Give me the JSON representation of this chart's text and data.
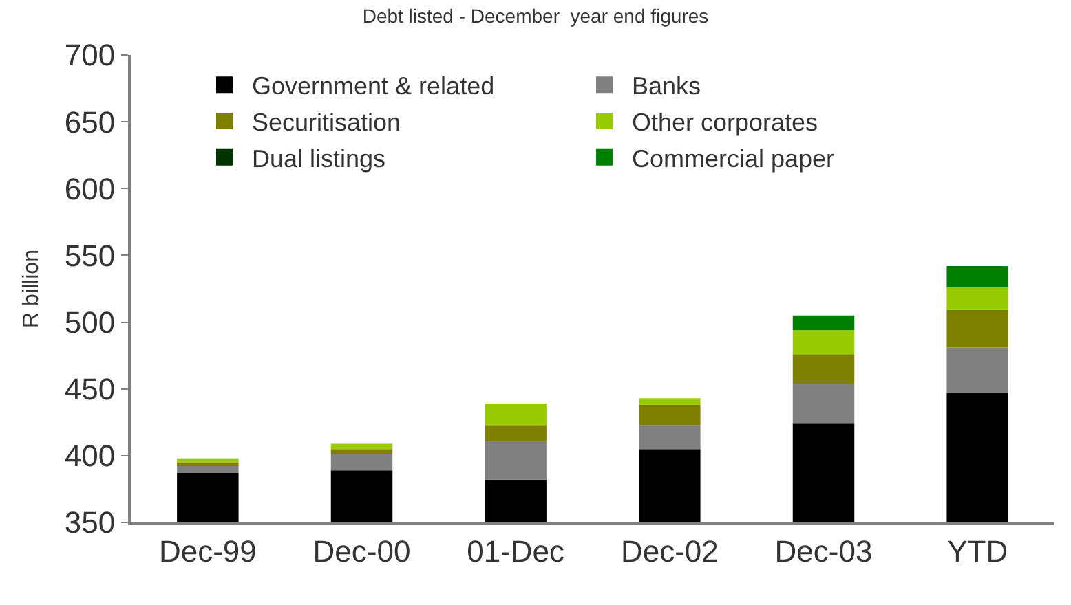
{
  "chart_data": {
    "type": "bar",
    "title": "Debt listed - December  year end figures",
    "ylabel": "R billion",
    "categories": [
      "Dec-99",
      "Dec-00",
      "01-Dec",
      "Dec-02",
      "Dec-03",
      "YTD"
    ],
    "stacked": true,
    "ylim": [
      350,
      700
    ],
    "yticks": [
      350,
      400,
      450,
      500,
      550,
      600,
      650,
      700
    ],
    "grid": false,
    "legend": "top",
    "series": [
      {
        "name": "Government & related",
        "color": "#000000",
        "values": [
          387,
          389,
          382,
          405,
          424,
          447
        ]
      },
      {
        "name": "Banks",
        "color": "#808080",
        "base": [
          387,
          389,
          382,
          405,
          424,
          447
        ],
        "values": [
          6,
          12,
          29,
          18,
          30,
          34
        ]
      },
      {
        "name": "Securitisation",
        "color": "#808000",
        "base": [
          393,
          401,
          411,
          423,
          454,
          481
        ],
        "values": [
          2,
          4,
          12,
          15,
          22,
          28
        ]
      },
      {
        "name": "Other corporates",
        "color": "#99cc00",
        "base": [
          395,
          405,
          423,
          438,
          476,
          509
        ],
        "values": [
          3,
          4,
          16,
          5,
          18,
          17
        ]
      },
      {
        "name": "Dual listings",
        "color": "#003300",
        "values": [
          null,
          null,
          null,
          null,
          null,
          null
        ]
      },
      {
        "name": "Commercial paper",
        "color": "#008000",
        "base": [
          null,
          null,
          null,
          null,
          494,
          526
        ],
        "values": [
          null,
          null,
          null,
          null,
          11,
          16
        ]
      }
    ]
  }
}
